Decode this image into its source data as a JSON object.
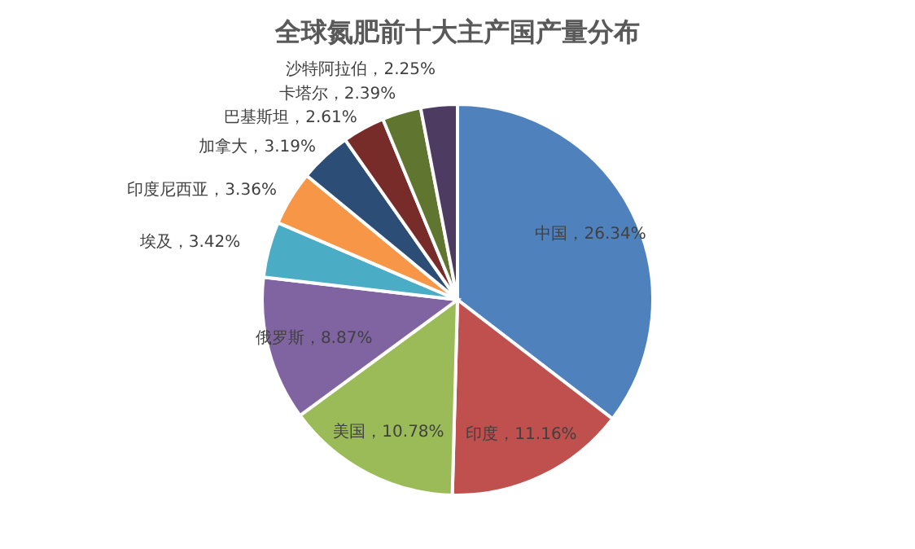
{
  "chart_data": {
    "type": "pie",
    "title": "全球氮肥前十大主产国产量分布",
    "categories": [
      "中国",
      "印度",
      "美国",
      "俄罗斯",
      "埃及",
      "印度尼西亚",
      "加拿大",
      "巴基斯坦",
      "卡塔尔",
      "沙特阿拉伯"
    ],
    "values": [
      26.34,
      11.16,
      10.78,
      8.87,
      3.42,
      3.36,
      3.19,
      2.61,
      2.39,
      2.25
    ],
    "value_labels": [
      "26.34%",
      "11.16%",
      "10.78%",
      "8.87%",
      "3.42%",
      "3.36%",
      "3.19%",
      "2.61%",
      "2.39%",
      "2.25%"
    ],
    "colors": [
      "#4f81bd",
      "#c0504d",
      "#9bbb59",
      "#8064a2",
      "#4bacc6",
      "#f79646",
      "#2c4d75",
      "#772c2a",
      "#5f7530",
      "#4d3b62"
    ]
  }
}
